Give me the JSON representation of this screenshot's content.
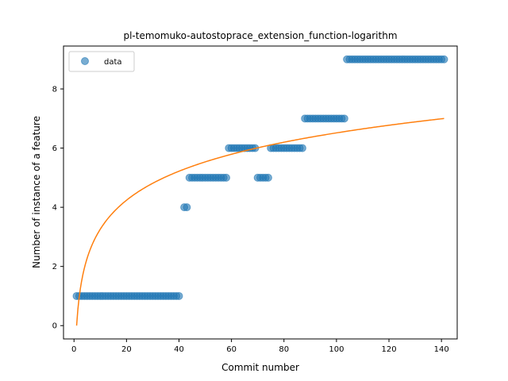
{
  "chart_data": {
    "type": "scatter",
    "title": "pl-temomuko-autostoprace_extension_function-logarithm",
    "xlabel": "Commit number",
    "ylabel": "Number of instance of a feature",
    "xlim": [
      -4,
      146
    ],
    "ylim": [
      -0.45,
      9.45
    ],
    "xticks": [
      0,
      20,
      40,
      60,
      80,
      100,
      120,
      140
    ],
    "yticks": [
      0,
      2,
      4,
      6,
      8
    ],
    "grid": false,
    "legend": {
      "placement": "top-left",
      "entries": [
        "data"
      ]
    },
    "colors": {
      "data": "#1f77b4",
      "fit": "#ff7f0e"
    },
    "series": [
      {
        "name": "data",
        "kind": "scatter",
        "segments": [
          {
            "x_start": 1,
            "x_end": 40,
            "y": 1
          },
          {
            "x_start": 42,
            "x_end": 43,
            "y": 4
          },
          {
            "x_start": 44,
            "x_end": 58,
            "y": 5
          },
          {
            "x_start": 59,
            "x_end": 69,
            "y": 6
          },
          {
            "x_start": 70,
            "x_end": 74,
            "y": 5
          },
          {
            "x_start": 75,
            "x_end": 87,
            "y": 6
          },
          {
            "x_start": 88,
            "x_end": 103,
            "y": 7
          },
          {
            "x_start": 104,
            "x_end": 141,
            "y": 9
          }
        ]
      },
      {
        "kind": "line",
        "model": "logarithmic",
        "a": 0,
        "b": 1.4147,
        "x_start": 1,
        "x_end": 141
      }
    ]
  }
}
